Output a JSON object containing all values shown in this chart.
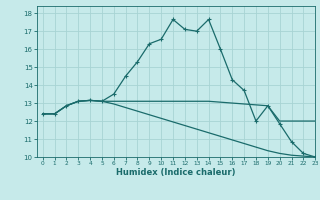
{
  "xlabel": "Humidex (Indice chaleur)",
  "background_color": "#c6eaea",
  "grid_color": "#a8d4d4",
  "line_color": "#1a6b6b",
  "xlim": [
    -0.5,
    23
  ],
  "ylim": [
    10,
    18.4
  ],
  "xticks": [
    0,
    1,
    2,
    3,
    4,
    5,
    6,
    7,
    8,
    9,
    10,
    11,
    12,
    13,
    14,
    15,
    16,
    17,
    18,
    19,
    20,
    21,
    22,
    23
  ],
  "yticks": [
    10,
    11,
    12,
    13,
    14,
    15,
    16,
    17,
    18
  ],
  "curve1_x": [
    0,
    1,
    2,
    3,
    4,
    5,
    6,
    7,
    8,
    9,
    10,
    11,
    12,
    13,
    14,
    15,
    16,
    17,
    18,
    19,
    20,
    21,
    22,
    23
  ],
  "curve1_y": [
    12.4,
    12.4,
    12.85,
    13.1,
    13.15,
    13.1,
    13.5,
    14.5,
    15.3,
    16.3,
    16.55,
    17.65,
    17.1,
    17.0,
    17.65,
    16.0,
    14.3,
    13.7,
    12.0,
    12.85,
    11.85,
    10.85,
    10.2,
    10.0
  ],
  "curve2_x": [
    0,
    1,
    2,
    3,
    4,
    5,
    6,
    7,
    8,
    9,
    10,
    11,
    12,
    13,
    14,
    15,
    16,
    17,
    18,
    19,
    20,
    21,
    22,
    23
  ],
  "curve2_y": [
    12.4,
    12.4,
    12.85,
    13.1,
    13.15,
    13.1,
    13.1,
    13.1,
    13.1,
    13.1,
    13.1,
    13.1,
    13.1,
    13.1,
    13.1,
    13.05,
    13.0,
    12.95,
    12.9,
    12.85,
    12.0,
    12.0,
    12.0,
    12.0
  ],
  "curve3_x": [
    0,
    1,
    2,
    3,
    4,
    5,
    6,
    7,
    8,
    9,
    10,
    11,
    12,
    13,
    14,
    15,
    16,
    17,
    18,
    19,
    20,
    21,
    22,
    23
  ],
  "curve3_y": [
    12.4,
    12.4,
    12.85,
    13.1,
    13.15,
    13.1,
    12.95,
    12.75,
    12.55,
    12.35,
    12.15,
    11.95,
    11.75,
    11.55,
    11.35,
    11.15,
    10.95,
    10.75,
    10.55,
    10.35,
    10.2,
    10.1,
    10.05,
    10.0
  ]
}
